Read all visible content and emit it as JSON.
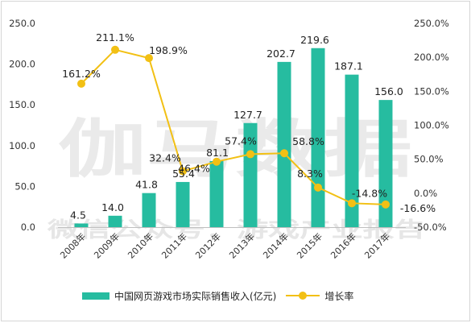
{
  "watermark": {
    "big": "伽马数据",
    "small": "微信公众号：游戏产业报告"
  },
  "chart_data": {
    "type": "bar+line",
    "categories": [
      "2008年",
      "2009年",
      "2010年",
      "2011年",
      "2012年",
      "2013年",
      "2014年",
      "2015年",
      "2016年",
      "2017年"
    ],
    "series": [
      {
        "name": "中国网页游戏市场实际销售收入(亿元)",
        "type": "bar",
        "axis": "left",
        "values": [
          4.5,
          14.0,
          41.8,
          55.4,
          81.1,
          127.7,
          202.7,
          219.6,
          187.1,
          156.0
        ],
        "labels": [
          "4.5",
          "14.0",
          "41.8",
          "55.4",
          "81.1",
          "127.7",
          "202.7",
          "219.6",
          "187.1",
          "156.0"
        ]
      },
      {
        "name": "增长率",
        "type": "line",
        "axis": "right",
        "values": [
          161.2,
          211.1,
          198.9,
          32.4,
          46.4,
          57.4,
          58.8,
          8.3,
          -14.8,
          -16.6
        ],
        "labels": [
          "161.2%",
          "211.1%",
          "198.9%",
          "32.4%",
          "46.4%",
          "57.4%",
          "58.8%",
          "8.3%",
          "-14.8%",
          "-16.6%"
        ]
      }
    ],
    "y_left": {
      "min": 0,
      "max": 250,
      "ticks": [
        "0.0",
        "50.0",
        "100.0",
        "150.0",
        "200.0",
        "250.0"
      ]
    },
    "y_right": {
      "min": -50,
      "max": 250,
      "ticks": [
        "-50.0%",
        "0.0%",
        "50.0%",
        "100.0%",
        "150.0%",
        "200.0%",
        "250.0%"
      ]
    },
    "grid": false,
    "legend_position": "bottom",
    "colors": {
      "bar": "#26bca0",
      "line": "#f2c014",
      "axis_text": "#333333"
    }
  }
}
